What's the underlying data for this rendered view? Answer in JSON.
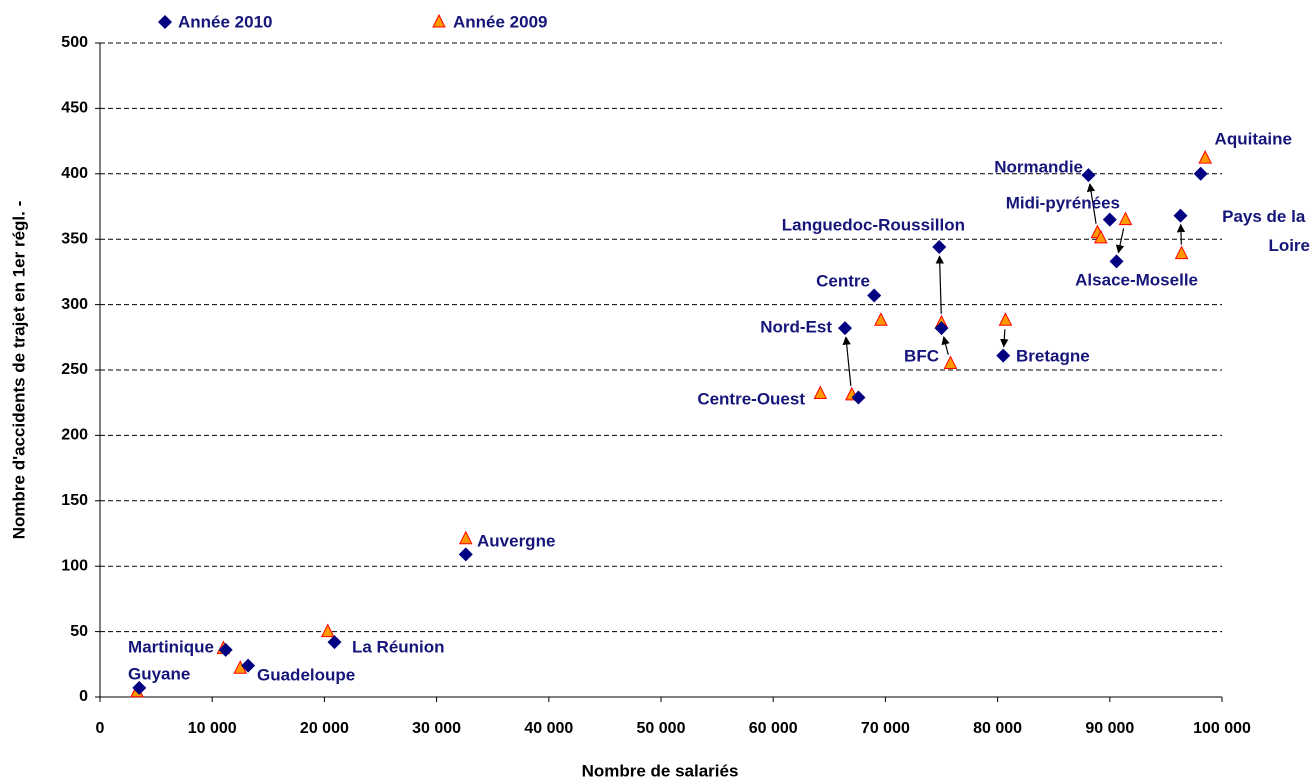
{
  "chart_data": {
    "type": "scatter",
    "x_label": "Nombre de salariés",
    "y_label": "Nombre d'accidents de trajet en 1er régl. -",
    "categories": [
      "Guyane",
      "Martinique",
      "Guadeloupe",
      "La Réunion",
      "Auvergne",
      "Centre-Ouest",
      "Nord-Est",
      "Centre",
      "Languedoc-Roussillon",
      "BFC",
      "Bretagne",
      "Normandie",
      "Midi-pyrénées",
      "Alsace-Moselle",
      "Pays de la Loire",
      "Aquitaine"
    ],
    "series": [
      {
        "name": "Année 2010",
        "color": "#000080",
        "marker": "diamond",
        "x": [
          3500,
          11200,
          13200,
          20900,
          32600,
          67600,
          66400,
          69000,
          74800,
          75000,
          80500,
          88100,
          90000,
          90600,
          96300,
          98100
        ],
        "values": [
          7,
          36,
          24,
          42,
          109,
          229,
          282,
          307,
          344,
          282,
          261,
          399,
          365,
          333,
          368,
          400
        ]
      },
      {
        "name": "Année 2009",
        "color": "#ff9900",
        "marker": "triangle",
        "x": [
          3300,
          11000,
          12500,
          20300,
          32600,
          64200,
          67000,
          69600,
          75000,
          75800,
          80700,
          88900,
          89200,
          91400,
          96400,
          98500
        ],
        "values": [
          4,
          37,
          22,
          50,
          121,
          232,
          231,
          288,
          286,
          255,
          288,
          355,
          351,
          365,
          339,
          412
        ]
      }
    ],
    "xlim": [
      0,
      100000
    ],
    "xticks": [
      0,
      {
        "value": 10000,
        "label": "10 000"
      },
      {
        "value": 20000,
        "label": "20 000"
      },
      {
        "value": 30000,
        "label": "30 000"
      },
      {
        "value": 40000,
        "label": "40 000"
      },
      {
        "value": 50000,
        "label": "50 000"
      },
      {
        "value": 60000,
        "label": "60 000"
      },
      {
        "value": 70000,
        "label": "70 000"
      },
      {
        "value": 80000,
        "label": "80 000"
      },
      {
        "value": 90000,
        "label": "90 000"
      },
      {
        "value": 100000,
        "label": "100 000"
      }
    ],
    "ylim": [
      0,
      500
    ],
    "yticks": [
      0,
      50,
      100,
      150,
      200,
      250,
      300,
      350,
      400,
      450,
      500
    ],
    "grid": true,
    "legend": "top-left"
  }
}
